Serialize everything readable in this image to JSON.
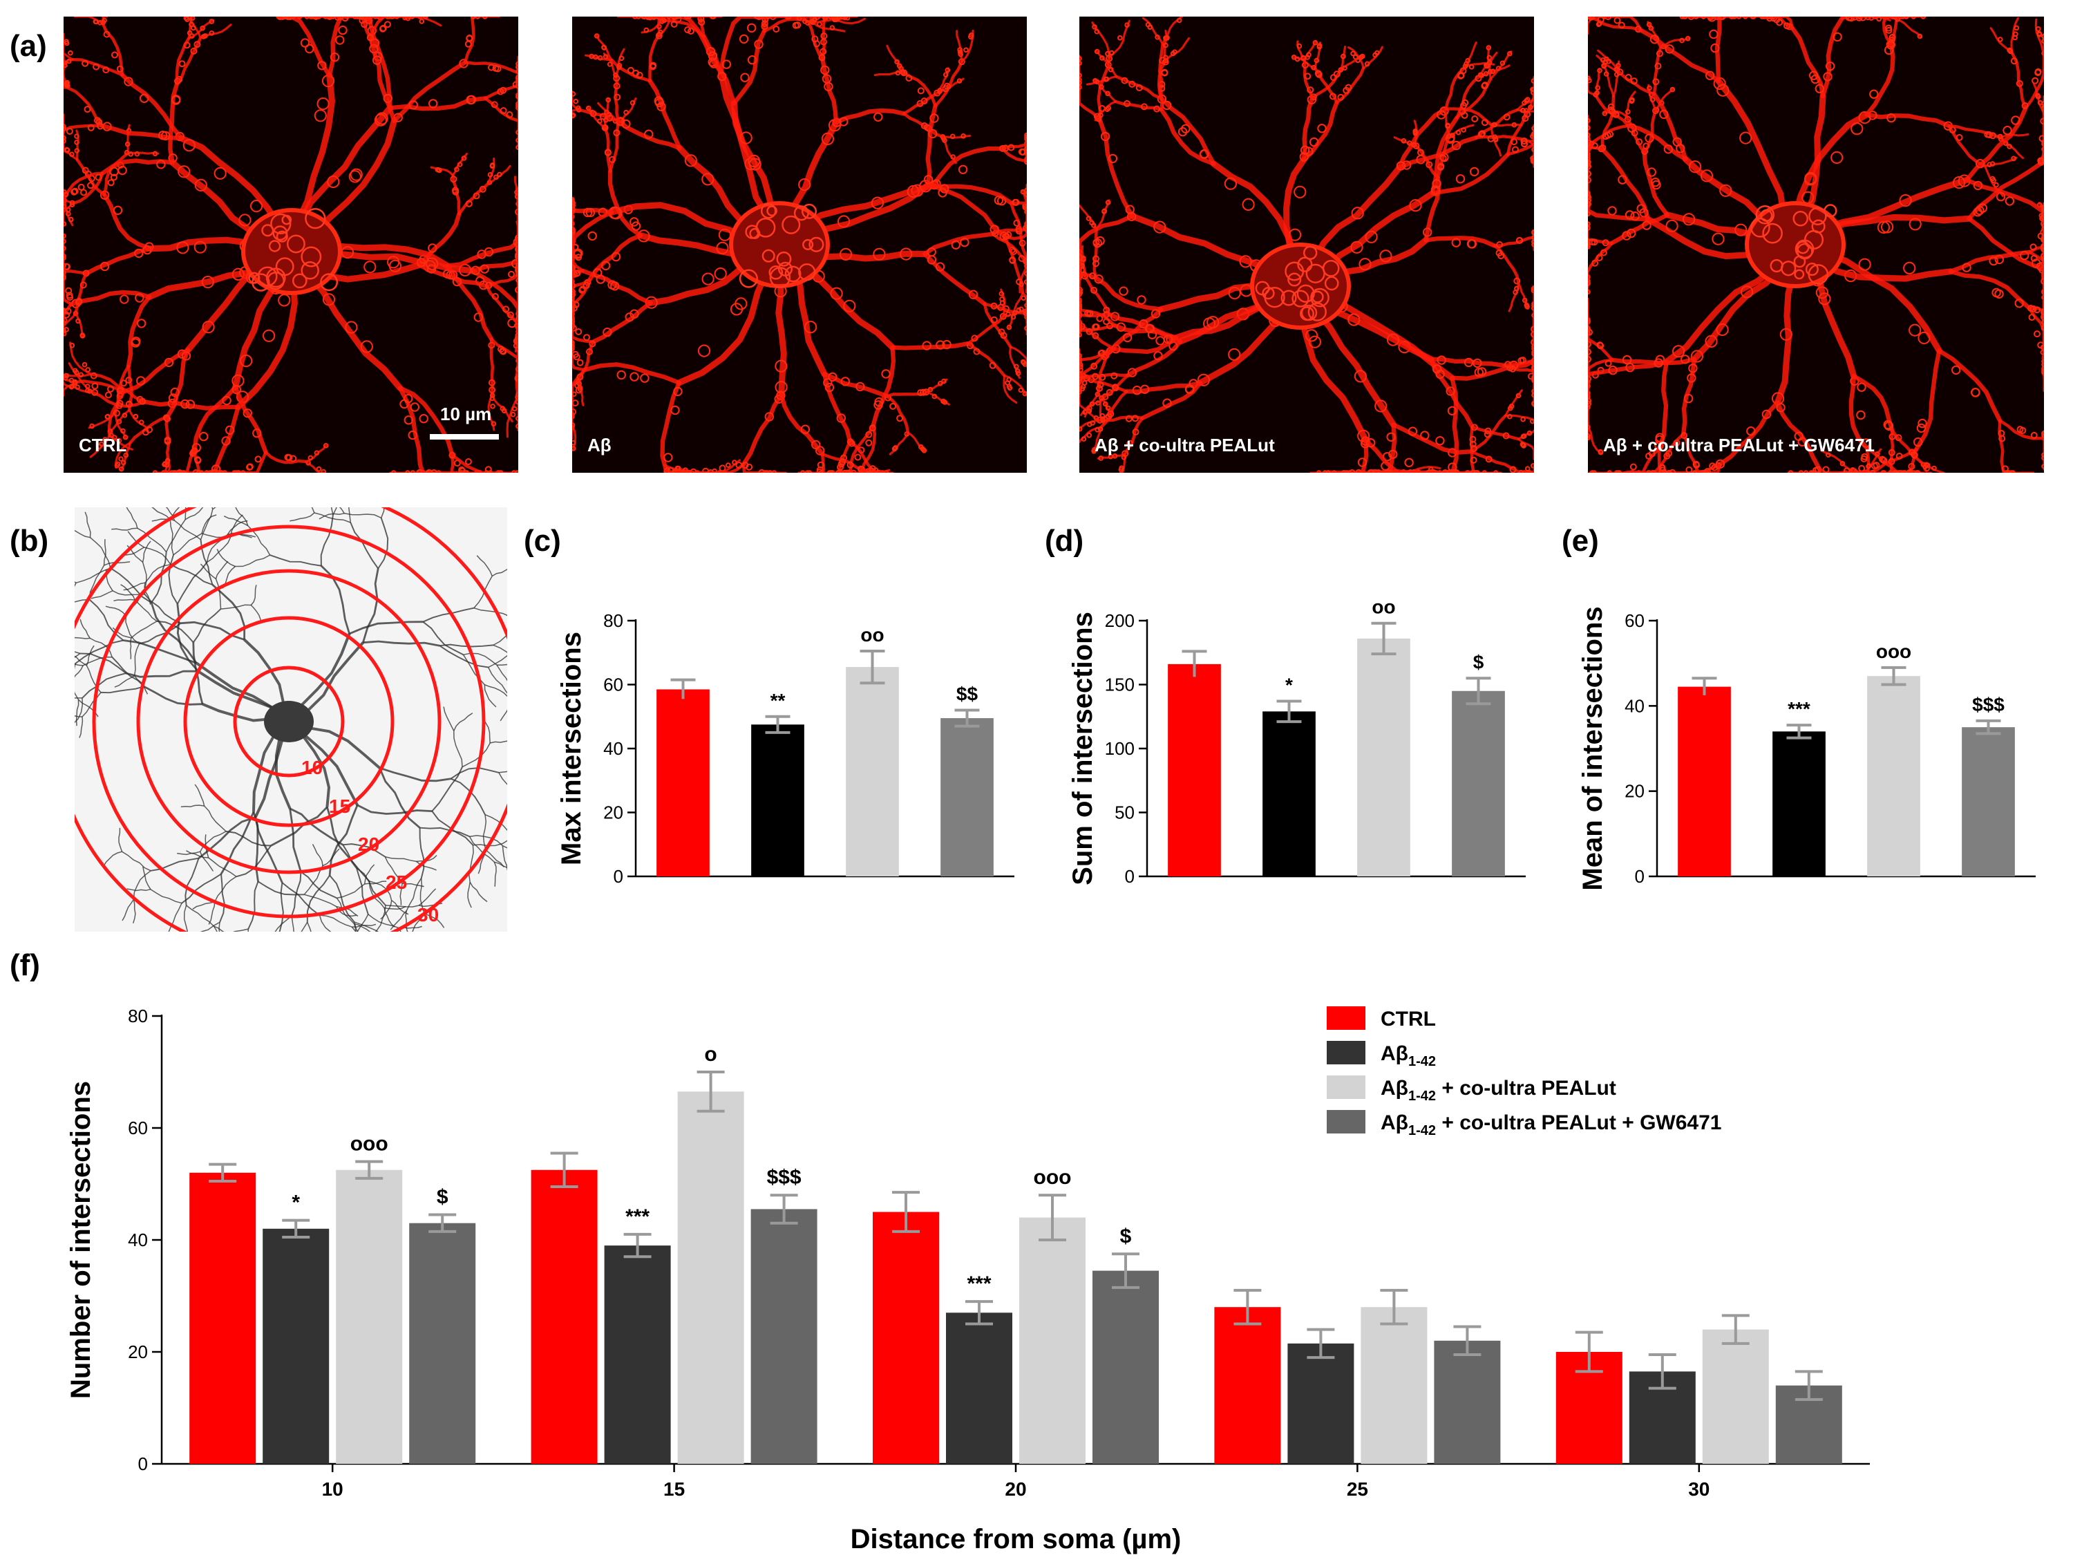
{
  "panel_letters": {
    "a": "(a)",
    "b": "(b)",
    "c": "(c)",
    "d": "(d)",
    "e": "(e)",
    "f": "(f)"
  },
  "micrographs": [
    {
      "label": "CTRL",
      "scalebar": "10 µm"
    },
    {
      "label": "Aβ"
    },
    {
      "label": "Aβ + co-ultra PEALut"
    },
    {
      "label": "Aβ + co-ultra PEALut + GW6471"
    }
  ],
  "sholl": {
    "ring_labels": [
      "10",
      "15",
      "20",
      "25",
      "30"
    ]
  },
  "colors": {
    "ctrl": "#ff0000",
    "abeta": "#000000",
    "pealut": "#d3d3d3",
    "gw": "#7f7f7f",
    "f_abeta": "#333333",
    "f_gw": "#666666",
    "error": "#9a9a9a"
  },
  "chart_data": [
    {
      "id": "c",
      "type": "bar",
      "ylabel": "Max intersections",
      "ylim": [
        0,
        80
      ],
      "yticks": [
        0,
        20,
        40,
        60,
        80
      ],
      "values": [
        58.5,
        47.5,
        65.5,
        49.5
      ],
      "errors": [
        3,
        2.5,
        5,
        2.5
      ],
      "annotations": [
        "",
        "**",
        "oo",
        "$$"
      ]
    },
    {
      "id": "d",
      "type": "bar",
      "ylabel": "Sum of intersections",
      "ylim": [
        0,
        200
      ],
      "yticks": [
        0,
        50,
        100,
        150,
        200
      ],
      "values": [
        166,
        129,
        186,
        145
      ],
      "errors": [
        10,
        8,
        12,
        10
      ],
      "annotations": [
        "",
        "*",
        "oo",
        "$"
      ]
    },
    {
      "id": "e",
      "type": "bar",
      "ylabel": "Mean of intersections",
      "ylim": [
        0,
        60
      ],
      "yticks": [
        0,
        20,
        40,
        60
      ],
      "values": [
        44.5,
        34,
        47,
        35
      ],
      "errors": [
        2,
        1.5,
        2,
        1.5
      ],
      "annotations": [
        "",
        "***",
        "ooo",
        "$$$"
      ]
    },
    {
      "id": "f",
      "type": "bar",
      "xlabel": "Distance from soma (µm)",
      "ylabel": "Number of intersections",
      "ylim": [
        0,
        80
      ],
      "yticks": [
        0,
        20,
        40,
        60,
        80
      ],
      "categories": [
        "10",
        "15",
        "20",
        "25",
        "30"
      ],
      "legend_position": "top-right",
      "series": [
        {
          "name": "CTRL",
          "values": [
            52,
            52.5,
            45,
            28,
            20
          ],
          "errors": [
            1.5,
            3,
            3.5,
            3,
            3.5
          ],
          "annotations": [
            "",
            "",
            "",
            "",
            ""
          ]
        },
        {
          "name": "Aβ1-42",
          "values": [
            42,
            39,
            27,
            21.5,
            16.5
          ],
          "errors": [
            1.5,
            2,
            2,
            2.5,
            3
          ],
          "annotations": [
            "*",
            "***",
            "***",
            "",
            ""
          ]
        },
        {
          "name": "Aβ1-42 + co-ultra PEALut",
          "values": [
            52.5,
            66.5,
            44,
            28,
            24
          ],
          "errors": [
            1.5,
            3.5,
            4,
            3,
            2.5
          ],
          "annotations": [
            "ooo",
            "o",
            "ooo",
            "",
            ""
          ]
        },
        {
          "name": "Aβ1-42 + co-ultra PEALut + GW6471",
          "values": [
            43,
            45.5,
            34.5,
            22,
            14
          ],
          "errors": [
            1.5,
            2.5,
            3,
            2.5,
            2.5
          ],
          "annotations": [
            "$",
            "$$$",
            "$",
            "",
            ""
          ]
        }
      ]
    }
  ]
}
